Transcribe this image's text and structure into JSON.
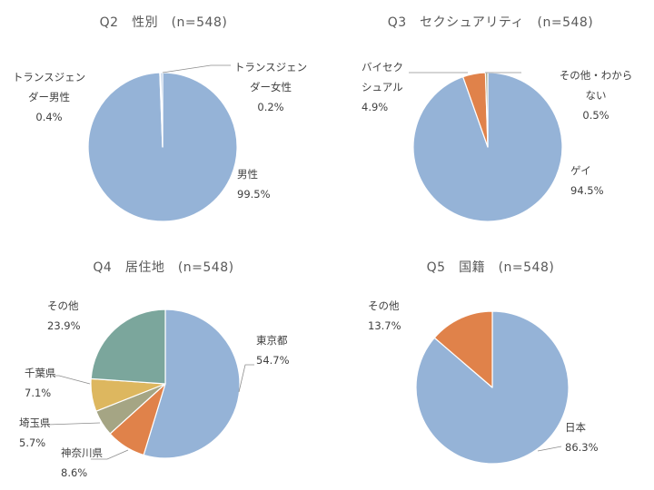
{
  "chart_data": [
    {
      "type": "pie",
      "title": "Q2　性別　(n=548)",
      "slices": [
        {
          "name": "男性",
          "value": 99.5,
          "label_lines": [
            "男性",
            "99.5%"
          ],
          "color": "#95B3D7"
        },
        {
          "name": "トランスジェンダー女性",
          "value": 0.2,
          "label_lines": [
            "トランスジェン",
            "ダー女性",
            "0.2%"
          ],
          "color": "#95B3D7"
        },
        {
          "name": "トランスジェンダー男性",
          "value": 0.4,
          "label_lines": [
            "トランスジェン",
            "ダー男性",
            "0.4%"
          ],
          "color": "#95B3D7"
        }
      ]
    },
    {
      "type": "pie",
      "title": "Q3　セクシュアリティ　(n=548)",
      "slices": [
        {
          "name": "ゲイ",
          "value": 94.5,
          "label_lines": [
            "ゲイ",
            "94.5%"
          ],
          "color": "#95B3D7"
        },
        {
          "name": "バイセクシュアル",
          "value": 4.9,
          "label_lines": [
            "バイセク",
            "シュアル",
            "4.9%"
          ],
          "color": "#E0824A"
        },
        {
          "name": "その他・わからない",
          "value": 0.5,
          "label_lines": [
            "その他・わから",
            "ない",
            "0.5%"
          ],
          "color": "#A5A584"
        }
      ]
    },
    {
      "type": "pie",
      "title": "Q4　居住地　(n=548)",
      "slices": [
        {
          "name": "東京都",
          "value": 54.7,
          "label_lines": [
            "東京都",
            "54.7%"
          ],
          "color": "#95B3D7"
        },
        {
          "name": "神奈川県",
          "value": 8.6,
          "label_lines": [
            "神奈川県",
            "8.6%"
          ],
          "color": "#E0824A"
        },
        {
          "name": "埼玉県",
          "value": 5.7,
          "label_lines": [
            "埼玉県",
            "5.7%"
          ],
          "color": "#A5A584"
        },
        {
          "name": "千葉県",
          "value": 7.1,
          "label_lines": [
            "千葉県",
            "7.1%"
          ],
          "color": "#DDB75F"
        },
        {
          "name": "その他",
          "value": 23.9,
          "label_lines": [
            "その他",
            "23.9%"
          ],
          "color": "#7BA69C"
        }
      ]
    },
    {
      "type": "pie",
      "title": "Q5　国籍　(n=548)",
      "slices": [
        {
          "name": "日本",
          "value": 86.3,
          "label_lines": [
            "日本",
            "86.3%"
          ],
          "color": "#95B3D7"
        },
        {
          "name": "その他",
          "value": 13.7,
          "label_lines": [
            "その他",
            "13.7%"
          ],
          "color": "#E0824A"
        }
      ]
    }
  ]
}
